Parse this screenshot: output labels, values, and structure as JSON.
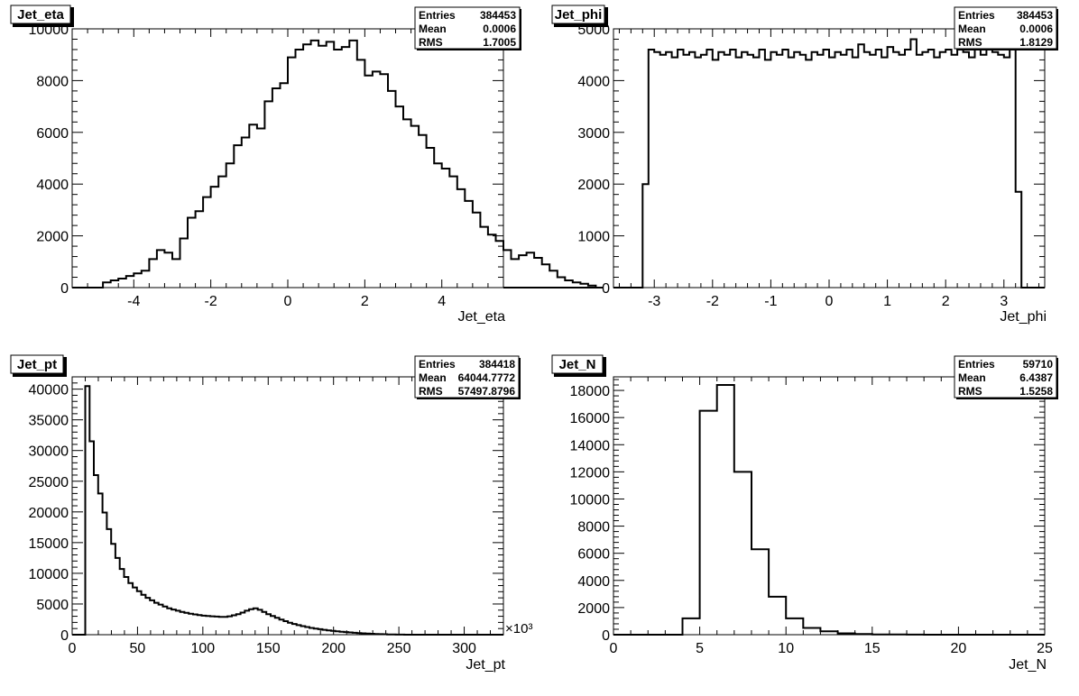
{
  "chart_data": [
    {
      "type": "histogram",
      "title": "Jet_eta",
      "xlabel": "Jet_eta",
      "ylabel": "",
      "xlim": [
        -5.6,
        5.6
      ],
      "ylim": [
        0,
        10000
      ],
      "xticks": [
        -4,
        -2,
        0,
        2,
        4
      ],
      "yticks": [
        0,
        2000,
        4000,
        6000,
        8000,
        10000
      ],
      "xmultiplier": "",
      "stats": [
        {
          "label": "Entries",
          "value": "384453"
        },
        {
          "label": "Mean",
          "value": "0.0006"
        },
        {
          "label": "RMS",
          "value": "1.7005"
        }
      ],
      "bin_edges_start": -5.0,
      "bin_width": 0.2,
      "values": [
        0,
        0,
        0,
        0,
        0,
        0,
        0,
        0,
        0,
        0,
        0,
        0,
        0,
        0,
        0,
        0,
        0,
        0,
        0,
        0,
        0,
        0,
        0,
        0,
        0,
        0,
        0,
        0,
        0,
        0,
        0,
        0,
        0,
        0,
        0,
        0,
        0,
        0,
        0,
        0,
        0,
        0,
        0,
        0,
        0,
        0,
        0,
        0,
        0,
        0,
        0,
        0,
        0,
        0,
        0,
        0,
        0,
        0,
        0,
        0
      ],
      "curve": [
        [
          -5.0,
          0
        ],
        [
          -4.8,
          200
        ],
        [
          -4.6,
          280
        ],
        [
          -4.4,
          350
        ],
        [
          -4.2,
          450
        ],
        [
          -4.0,
          550
        ],
        [
          -3.8,
          650
        ],
        [
          -3.6,
          1100
        ],
        [
          -3.4,
          1450
        ],
        [
          -3.2,
          1350
        ],
        [
          -3.0,
          1100
        ],
        [
          -2.8,
          1900
        ],
        [
          -2.6,
          2700
        ],
        [
          -2.4,
          2950
        ],
        [
          -2.2,
          3500
        ],
        [
          -2.0,
          3900
        ],
        [
          -1.8,
          4300
        ],
        [
          -1.6,
          4800
        ],
        [
          -1.4,
          5500
        ],
        [
          -1.2,
          5800
        ],
        [
          -1.0,
          6300
        ],
        [
          -0.8,
          6150
        ],
        [
          -0.6,
          7200
        ],
        [
          -0.4,
          7700
        ],
        [
          -0.2,
          7900
        ],
        [
          0.0,
          8900
        ],
        [
          0.2,
          8700
        ],
        [
          0.4,
          9100
        ],
        [
          0.6,
          8700
        ],
        [
          0.8,
          8300
        ],
        [
          1.0,
          9050
        ],
        [
          1.2,
          8400
        ],
        [
          1.4,
          9550
        ],
        [
          1.6,
          9350
        ],
        [
          1.8,
          9600
        ],
        [
          2.0,
          9400
        ],
        [
          2.2,
          9100
        ],
        [
          2.4,
          9000
        ],
        [
          2.6,
          8900
        ],
        [
          2.8,
          8350
        ],
        [
          3.0,
          8400
        ],
        [
          3.2,
          8100
        ],
        [
          3.4,
          7700
        ],
        [
          3.6,
          6800
        ],
        [
          3.8,
          6500
        ],
        [
          4.0,
          6100
        ],
        [
          4.2,
          5900
        ],
        [
          4.4,
          5400
        ],
        [
          4.6,
          4900
        ],
        [
          4.8,
          4400
        ]
      ]
    },
    {
      "type": "histogram",
      "title": "Jet_phi",
      "xlabel": "Jet_phi",
      "ylabel": "",
      "xlim": [
        -3.7,
        3.7
      ],
      "ylim": [
        0,
        5000
      ],
      "xticks": [
        -3,
        -2,
        -1,
        0,
        1,
        2,
        3
      ],
      "yticks": [
        0,
        1000,
        2000,
        3000,
        4000,
        5000
      ],
      "xmultiplier": "",
      "stats": [
        {
          "label": "Entries",
          "value": "384453"
        },
        {
          "label": "Mean",
          "value": "0.0006"
        },
        {
          "label": "RMS",
          "value": "1.8129"
        }
      ],
      "bin_edges_start": -3.2,
      "bin_width": 0.1,
      "values": [
        2000,
        4600,
        4550,
        4500,
        4550,
        4450,
        4600,
        4500,
        4550,
        4450,
        4500,
        4600,
        4400,
        4550,
        4500,
        4600,
        4450,
        4550,
        4500,
        4450,
        4600,
        4400,
        4550,
        4500,
        4600,
        4450,
        4550,
        4500,
        4400,
        4550,
        4500,
        4600,
        4450,
        4550,
        4500,
        4600,
        4450,
        4700,
        4550,
        4500,
        4600,
        4450,
        4650,
        4550,
        4500,
        4600,
        4800,
        4500,
        4550,
        4600,
        4450,
        4550,
        4600,
        4500,
        4850,
        4550,
        4450,
        4600,
        4500,
        4650,
        4550,
        4500,
        4450,
        4600,
        1850
      ]
    },
    {
      "type": "histogram",
      "title": "Jet_pt",
      "xlabel": "Jet_pt",
      "ylabel": "",
      "xlim": [
        0,
        330
      ],
      "ylim": [
        0,
        42000
      ],
      "xticks": [
        0,
        50,
        100,
        150,
        200,
        250,
        300
      ],
      "yticks": [
        0,
        5000,
        10000,
        15000,
        20000,
        25000,
        30000,
        35000,
        40000
      ],
      "xmultiplier": "×10³",
      "stats": [
        {
          "label": "Entries",
          "value": "384418"
        },
        {
          "label": "Mean",
          "value": "64044.7772"
        },
        {
          "label": "RMS",
          "value": "57497.8796"
        }
      ],
      "bin_edges_start": 10,
      "bin_width": 3.3,
      "values": [
        40500,
        31500,
        26000,
        23000,
        19900,
        17200,
        14800,
        12500,
        10700,
        9400,
        8400,
        7700,
        7100,
        6500,
        6000,
        5600,
        5200,
        4900,
        4600,
        4300,
        4100,
        3900,
        3700,
        3550,
        3400,
        3300,
        3200,
        3100,
        3050,
        3000,
        2950,
        2900,
        2900,
        3000,
        3150,
        3350,
        3600,
        3900,
        4150,
        4300,
        4050,
        3700,
        3350,
        3050,
        2750,
        2450,
        2200,
        1950,
        1750,
        1550,
        1400,
        1250,
        1100,
        1000,
        900,
        800,
        700,
        620,
        550,
        480,
        420,
        360,
        310,
        260,
        220,
        180,
        150,
        120,
        90,
        70,
        50,
        30,
        20,
        10,
        5
      ]
    },
    {
      "type": "histogram",
      "title": "Jet_N",
      "xlabel": "Jet_N",
      "ylabel": "",
      "xlim": [
        0,
        25
      ],
      "ylim": [
        0,
        19000
      ],
      "xticks": [
        0,
        5,
        10,
        15,
        20,
        25
      ],
      "yticks": [
        0,
        2000,
        4000,
        6000,
        8000,
        10000,
        12000,
        14000,
        16000,
        18000
      ],
      "xmultiplier": "",
      "stats": [
        {
          "label": "Entries",
          "value": "59710"
        },
        {
          "label": "Mean",
          "value": "6.4387"
        },
        {
          "label": "RMS",
          "value": "1.5258"
        }
      ],
      "bin_edges_start": 0,
      "bin_width": 1,
      "values": [
        0,
        0,
        0,
        0,
        1200,
        16500,
        18400,
        12000,
        6300,
        2800,
        1200,
        500,
        250,
        100,
        50,
        20,
        10,
        5,
        2,
        1,
        0,
        0,
        0,
        0,
        0
      ]
    }
  ]
}
